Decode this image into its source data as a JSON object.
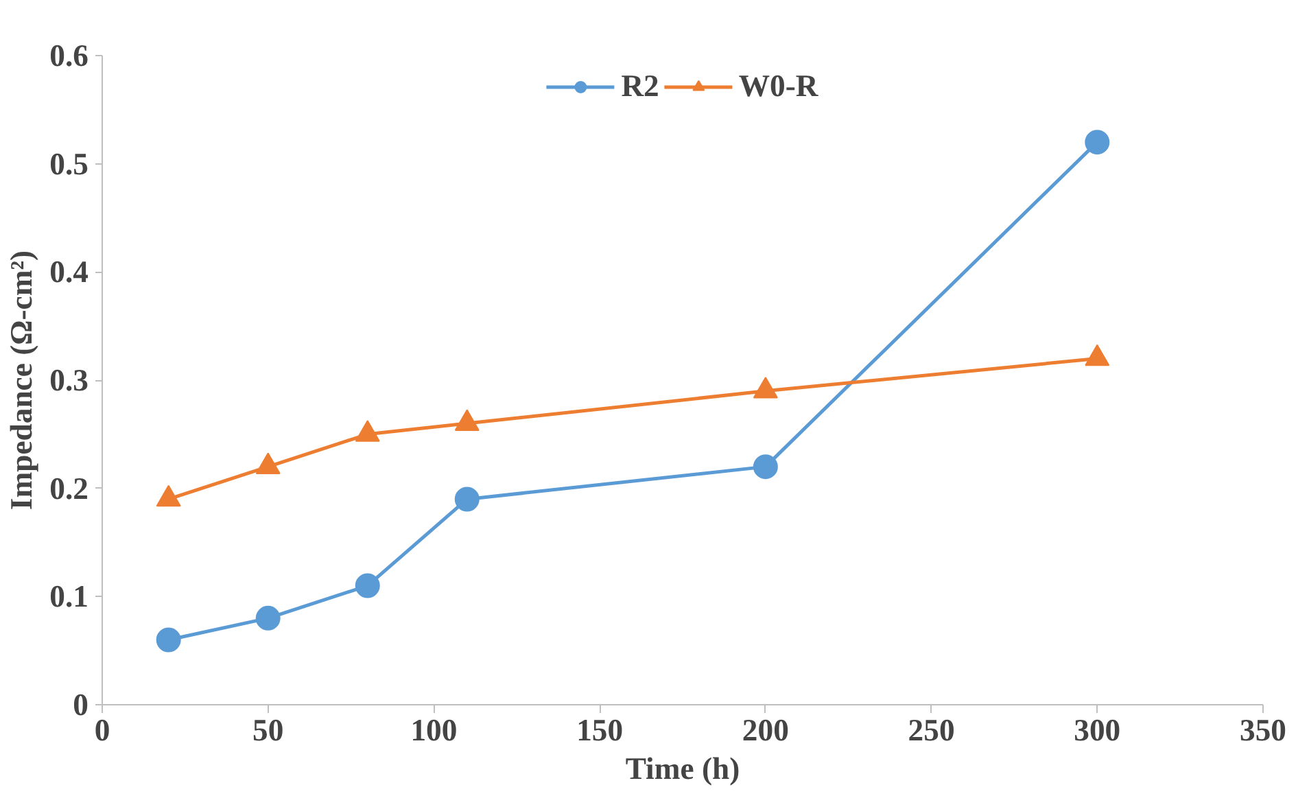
{
  "chart_data": {
    "type": "line",
    "xlabel": "Time (h)",
    "ylabel": "Impedance (Ω-cm²)",
    "x": [
      20,
      50,
      80,
      110,
      200,
      300
    ],
    "series": [
      {
        "name": "R2",
        "color": "#5b9bd5",
        "marker": "circle",
        "values": [
          0.06,
          0.08,
          0.11,
          0.19,
          0.22,
          0.52
        ]
      },
      {
        "name": "W0-R",
        "color": "#ed7d31",
        "marker": "triangle",
        "values": [
          0.19,
          0.22,
          0.25,
          0.26,
          0.29,
          0.32
        ]
      }
    ],
    "xlim": [
      0,
      350
    ],
    "xticks": [
      0,
      50,
      100,
      150,
      200,
      250,
      300,
      350
    ],
    "ylim": [
      0,
      0.6
    ],
    "yticks": [
      0,
      0.1,
      0.2,
      0.3,
      0.4,
      0.5,
      0.6
    ],
    "grid": false,
    "legend": "top"
  }
}
